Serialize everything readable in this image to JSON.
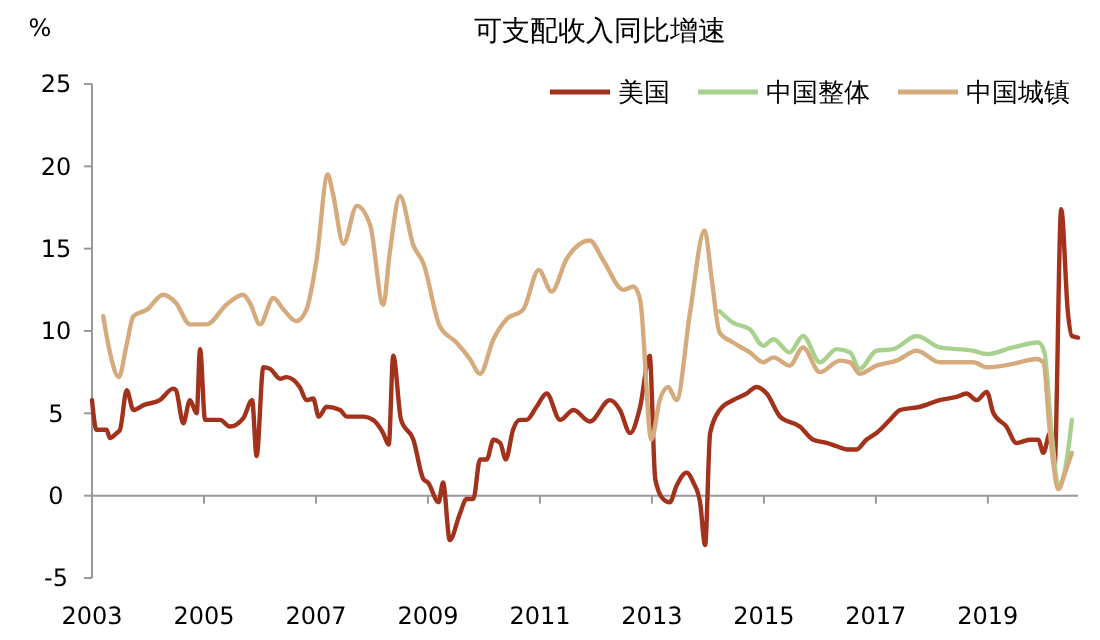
{
  "chart_data": {
    "type": "line",
    "title": "可支配收入同比增速",
    "ylabel": "%",
    "xlim": [
      2003,
      2020.61
    ],
    "xticks": [
      2003,
      2005,
      2007,
      2009,
      2011,
      2013,
      2015,
      2017,
      2019
    ],
    "ylim": [
      -5,
      25
    ],
    "yticks": [
      -5,
      0,
      5,
      10,
      15,
      20,
      25
    ],
    "legend": "top right",
    "marker": "none",
    "line_style": "solid",
    "series": [
      {
        "name": "美国",
        "color": "#a3321c",
        "x": [
          2003.0,
          2003.08,
          2003.26,
          2003.32,
          2003.44,
          2003.5,
          2003.62,
          2003.74,
          2003.92,
          2004.21,
          2004.45,
          2004.5,
          2004.63,
          2004.75,
          2004.87,
          2004.93,
          2005.02,
          2005.29,
          2005.46,
          2005.7,
          2005.86,
          2005.94,
          2006.06,
          2006.18,
          2006.36,
          2006.47,
          2006.71,
          2006.83,
          2006.95,
          2007.05,
          2007.19,
          2007.43,
          2007.55,
          2007.85,
          2008.02,
          2008.2,
          2008.3,
          2008.38,
          2008.52,
          2008.74,
          2008.92,
          2009.0,
          2009.19,
          2009.27,
          2009.39,
          2009.57,
          2009.69,
          2009.81,
          2009.93,
          2010.05,
          2010.17,
          2010.29,
          2010.39,
          2010.52,
          2010.64,
          2010.76,
          2010.94,
          2011.12,
          2011.36,
          2011.6,
          2011.89,
          2012.25,
          2012.43,
          2012.61,
          2012.79,
          2012.96,
          2013.06,
          2013.2,
          2013.32,
          2013.44,
          2013.62,
          2013.74,
          2013.86,
          2013.95,
          2014.04,
          2014.21,
          2014.45,
          2014.69,
          2014.87,
          2015.05,
          2015.29,
          2015.64,
          2015.88,
          2016.12,
          2016.3,
          2016.48,
          2016.65,
          2016.83,
          2017.01,
          2017.25,
          2017.43,
          2017.79,
          2018.14,
          2018.44,
          2018.62,
          2018.8,
          2018.98,
          2019.1,
          2019.33,
          2019.51,
          2019.75,
          2019.9,
          2019.99,
          2020.11,
          2020.19,
          2020.31,
          2020.43,
          2020.5,
          2020.61
        ],
        "values": [
          5.8,
          4.0,
          4.0,
          3.5,
          3.8,
          4.0,
          6.4,
          5.2,
          5.5,
          5.8,
          6.5,
          6.4,
          4.4,
          5.8,
          5.0,
          8.9,
          4.6,
          4.6,
          4.2,
          4.7,
          5.8,
          2.4,
          7.8,
          7.7,
          7.1,
          7.2,
          6.6,
          5.8,
          5.9,
          4.8,
          5.4,
          5.2,
          4.8,
          4.8,
          4.6,
          3.8,
          3.1,
          8.5,
          4.6,
          3.4,
          1.0,
          0.8,
          -0.4,
          0.8,
          -2.7,
          -1.1,
          -0.2,
          -0.2,
          2.2,
          2.2,
          3.4,
          3.2,
          2.2,
          4.0,
          4.6,
          4.6,
          5.4,
          6.2,
          4.6,
          5.2,
          4.5,
          5.8,
          5.2,
          3.8,
          5.4,
          8.5,
          1.0,
          -0.2,
          -0.4,
          0.6,
          1.4,
          0.8,
          -0.4,
          -3.0,
          3.8,
          5.2,
          5.8,
          6.2,
          6.6,
          6.2,
          4.8,
          4.2,
          3.4,
          3.2,
          3.0,
          2.8,
          2.8,
          3.4,
          3.8,
          4.6,
          5.2,
          5.4,
          5.8,
          6.0,
          6.2,
          5.8,
          6.3,
          5.0,
          4.2,
          3.2,
          3.4,
          3.4,
          2.6,
          3.8,
          1.8,
          17.4,
          11.1,
          9.7,
          9.6
        ]
      },
      {
        "name": "中国整体",
        "color": "#a9d18e",
        "x": [
          2014.21,
          2014.45,
          2014.75,
          2014.99,
          2015.17,
          2015.46,
          2015.7,
          2016.0,
          2016.3,
          2016.54,
          2016.71,
          2017.01,
          2017.31,
          2017.73,
          2018.14,
          2018.74,
          2018.98,
          2019.45,
          2019.9,
          2020.01,
          2020.14,
          2020.26,
          2020.38,
          2020.5
        ],
        "values": [
          11.2,
          10.5,
          10.1,
          9.1,
          9.5,
          8.7,
          9.7,
          8.1,
          8.9,
          8.7,
          7.7,
          8.8,
          8.9,
          9.7,
          9.0,
          8.8,
          8.6,
          9.0,
          9.3,
          8.7,
          3.8,
          0.6,
          1.6,
          4.6
        ]
      },
      {
        "name": "中国城镇",
        "color": "#d5ab7e",
        "x": [
          2003.2,
          2003.32,
          2003.48,
          2003.62,
          2003.74,
          2003.98,
          2004.27,
          2004.5,
          2004.75,
          2005.05,
          2005.4,
          2005.7,
          2005.82,
          2006.0,
          2006.24,
          2006.42,
          2006.65,
          2006.83,
          2007.01,
          2007.21,
          2007.3,
          2007.49,
          2007.73,
          2007.97,
          2008.2,
          2008.32,
          2008.5,
          2008.74,
          2008.92,
          2009.21,
          2009.51,
          2009.75,
          2009.93,
          2010.17,
          2010.4,
          2010.7,
          2010.98,
          2011.21,
          2011.48,
          2011.89,
          2012.13,
          2012.49,
          2012.67,
          2012.79,
          2012.99,
          2013.14,
          2013.29,
          2013.44,
          2013.68,
          2013.94,
          2014.07,
          2014.21,
          2014.45,
          2014.75,
          2014.99,
          2015.17,
          2015.46,
          2015.7,
          2016.0,
          2016.36,
          2016.54,
          2016.71,
          2017.01,
          2017.37,
          2017.73,
          2018.14,
          2018.74,
          2018.98,
          2019.45,
          2019.87,
          2019.99,
          2020.11,
          2020.26,
          2020.38,
          2020.5
        ],
        "values": [
          10.9,
          8.7,
          7.2,
          9.2,
          10.9,
          11.3,
          12.2,
          11.7,
          10.4,
          10.4,
          11.6,
          12.2,
          11.7,
          10.4,
          12.0,
          11.3,
          10.6,
          11.3,
          14.3,
          19.5,
          18.4,
          15.3,
          17.6,
          16.4,
          11.6,
          14.8,
          18.2,
          15.2,
          14.1,
          10.3,
          9.3,
          8.3,
          7.4,
          9.5,
          10.7,
          11.3,
          13.7,
          12.4,
          14.4,
          15.5,
          14.3,
          12.5,
          12.7,
          11.9,
          3.4,
          5.8,
          6.6,
          5.8,
          11.1,
          16.1,
          13.1,
          9.9,
          9.3,
          8.7,
          8.1,
          8.4,
          7.9,
          9.0,
          7.5,
          8.2,
          8.1,
          7.4,
          7.9,
          8.2,
          8.8,
          8.1,
          8.1,
          7.8,
          8.0,
          8.3,
          8.1,
          3.8,
          0.4,
          1.4,
          2.6
        ]
      }
    ]
  }
}
